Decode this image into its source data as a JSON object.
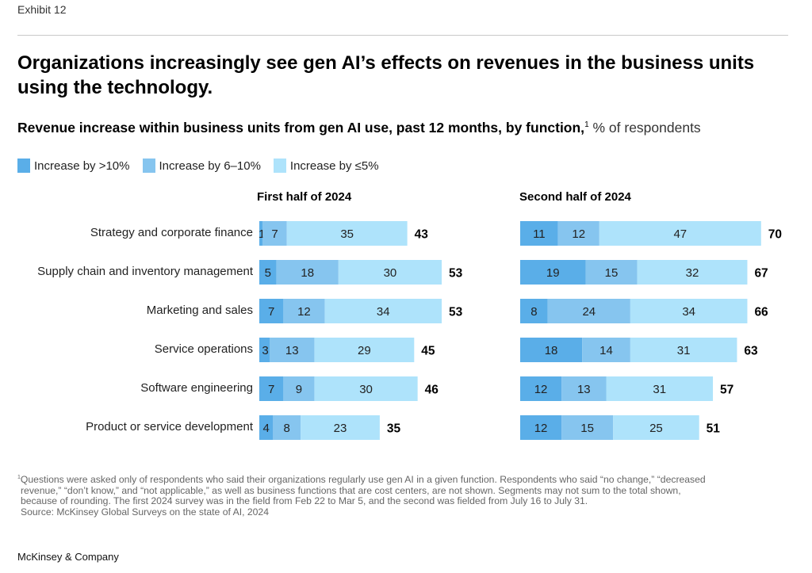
{
  "exhibit_label": "Exhibit 12",
  "title": "Organizations increasingly see gen AI’s effects on revenues in the business units using the technology.",
  "subtitle": {
    "main": "Revenue increase within business units from gen AI use, past 12 months, by function,",
    "footnote_marker": "1",
    "unit": " % of respondents"
  },
  "colors": {
    "gt10": "#5aaee8",
    "6to10": "#86c5ef",
    "le5": "#aee3fb"
  },
  "chart_data": {
    "type": "bar",
    "orientation": "horizontal",
    "stacked": true,
    "title": "Revenue increase within business units from gen AI use, past 12 months, by function, % of respondents",
    "legend": [
      "Increase by >10%",
      "Increase by 6–10%",
      "Increase by ≤5%"
    ],
    "legend_position": "top-left",
    "categories": [
      "Strategy and corporate finance",
      "Supply chain and inventory management",
      "Marketing and sales",
      "Service operations",
      "Software engineering",
      "Product or service development"
    ],
    "panels": [
      {
        "title": "First half of 2024",
        "series": [
          {
            "name": "Increase by >10%",
            "values": [
              1,
              5,
              7,
              3,
              7,
              4
            ]
          },
          {
            "name": "Increase by 6–10%",
            "values": [
              7,
              18,
              12,
              13,
              9,
              8
            ]
          },
          {
            "name": "Increase by ≤5%",
            "values": [
              35,
              30,
              34,
              29,
              30,
              23
            ]
          }
        ],
        "totals": [
          43,
          53,
          53,
          45,
          46,
          35
        ]
      },
      {
        "title": "Second half of 2024",
        "series": [
          {
            "name": "Increase by >10%",
            "values": [
              11,
              19,
              8,
              18,
              12,
              12
            ]
          },
          {
            "name": "Increase by 6–10%",
            "values": [
              12,
              15,
              24,
              14,
              13,
              15
            ]
          },
          {
            "name": "Increase by ≤5%",
            "values": [
              47,
              32,
              34,
              31,
              31,
              25
            ]
          }
        ],
        "totals": [
          70,
          67,
          66,
          63,
          57,
          51
        ]
      }
    ],
    "xlabel": "",
    "ylabel": "",
    "grid": false
  },
  "footnote": {
    "line1": "Questions were asked only of respondents who said their organizations regularly use gen AI in a given function. Respondents who said “no change,” “decreased",
    "line2": "revenue,” “don’t know,” and “not applicable,” as well as business functions that are cost centers, are not shown. Segments may not sum to the total shown,",
    "line3": "because of rounding. The first 2024 survey was in the field from Feb 22 to Mar 5, and the second was fielded from July 16 to July 31.",
    "source": "Source: McKinsey Global Surveys on the state of AI, 2024",
    "marker": "1"
  },
  "brand": "McKinsey & Company"
}
